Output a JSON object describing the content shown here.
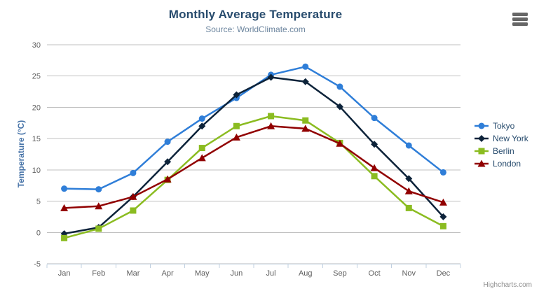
{
  "header": {
    "title": "Monthly Average Temperature",
    "subtitle": "Source: WorldClimate.com"
  },
  "export_menu": {
    "icon": "hamburger-icon"
  },
  "credits": {
    "label": "Highcharts.com"
  },
  "chart_data": {
    "type": "line",
    "title": "Monthly Average Temperature",
    "subtitle": "Source: WorldClimate.com",
    "categories": [
      "Jan",
      "Feb",
      "Mar",
      "Apr",
      "May",
      "Jun",
      "Jul",
      "Aug",
      "Sep",
      "Oct",
      "Nov",
      "Dec"
    ],
    "series": [
      {
        "name": "Tokyo",
        "color": "#2f7ed8",
        "marker": "circle",
        "values": [
          7.0,
          6.9,
          9.5,
          14.5,
          18.2,
          21.5,
          25.2,
          26.5,
          23.3,
          18.3,
          13.9,
          9.6
        ]
      },
      {
        "name": "New York",
        "color": "#0d233a",
        "marker": "diamond",
        "values": [
          -0.2,
          0.8,
          5.7,
          11.3,
          17.0,
          22.0,
          24.8,
          24.1,
          20.1,
          14.1,
          8.6,
          2.5
        ]
      },
      {
        "name": "Berlin",
        "color": "#8bbc21",
        "marker": "square",
        "values": [
          -0.9,
          0.6,
          3.5,
          8.4,
          13.5,
          17.0,
          18.6,
          17.9,
          14.3,
          9.0,
          3.9,
          1.0
        ]
      },
      {
        "name": "London",
        "color": "#910000",
        "marker": "triangle",
        "values": [
          3.9,
          4.2,
          5.7,
          8.5,
          11.9,
          15.2,
          17.0,
          16.6,
          14.2,
          10.3,
          6.6,
          4.8
        ]
      }
    ],
    "xlabel": "",
    "ylabel": "Temperature (°C)",
    "ylim": [
      -5,
      30
    ],
    "yticks": [
      -5,
      0,
      5,
      10,
      15,
      20,
      25,
      30
    ],
    "grid": true,
    "legend_position": "right",
    "colors": {
      "grid": "#C0C0C0",
      "axis_line": "#C0D0E0",
      "tick": "#C0D0E0",
      "axis_label": "#606060",
      "axis_title": "#4572A7",
      "title": "#274b6d",
      "subtitle": "#6D869F",
      "legend_text": "#274b6d",
      "credits": "#909090"
    }
  }
}
